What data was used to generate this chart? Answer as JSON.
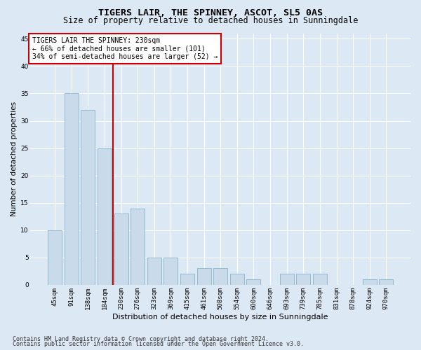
{
  "title": "TIGERS LAIR, THE SPINNEY, ASCOT, SL5 0AS",
  "subtitle": "Size of property relative to detached houses in Sunningdale",
  "xlabel": "Distribution of detached houses by size in Sunningdale",
  "ylabel": "Number of detached properties",
  "categories": [
    "45sqm",
    "91sqm",
    "138sqm",
    "184sqm",
    "230sqm",
    "276sqm",
    "323sqm",
    "369sqm",
    "415sqm",
    "461sqm",
    "508sqm",
    "554sqm",
    "600sqm",
    "646sqm",
    "693sqm",
    "739sqm",
    "785sqm",
    "831sqm",
    "878sqm",
    "924sqm",
    "970sqm"
  ],
  "values": [
    10,
    35,
    32,
    25,
    13,
    14,
    5,
    5,
    2,
    3,
    3,
    2,
    1,
    0,
    2,
    2,
    2,
    0,
    0,
    1,
    1
  ],
  "bar_color": "#c9daea",
  "bar_edge_color": "#8ab4cc",
  "vline_color": "#cc0000",
  "annotation_line1": "TIGERS LAIR THE SPINNEY: 230sqm",
  "annotation_line2": "← 66% of detached houses are smaller (101)",
  "annotation_line3": "34% of semi-detached houses are larger (52) →",
  "annotation_box_color": "#ffffff",
  "annotation_box_edge_color": "#cc0000",
  "yticks": [
    0,
    5,
    10,
    15,
    20,
    25,
    30,
    35,
    40,
    45
  ],
  "ylim": [
    0,
    46
  ],
  "footer1": "Contains HM Land Registry data © Crown copyright and database right 2024.",
  "footer2": "Contains public sector information licensed under the Open Government Licence v3.0.",
  "background_color": "#dce8f4",
  "plot_background_color": "#dce8f4",
  "title_fontsize": 9.5,
  "subtitle_fontsize": 8.5,
  "xlabel_fontsize": 8,
  "ylabel_fontsize": 7.5,
  "tick_fontsize": 6.5,
  "annotation_fontsize": 7,
  "footer_fontsize": 6
}
